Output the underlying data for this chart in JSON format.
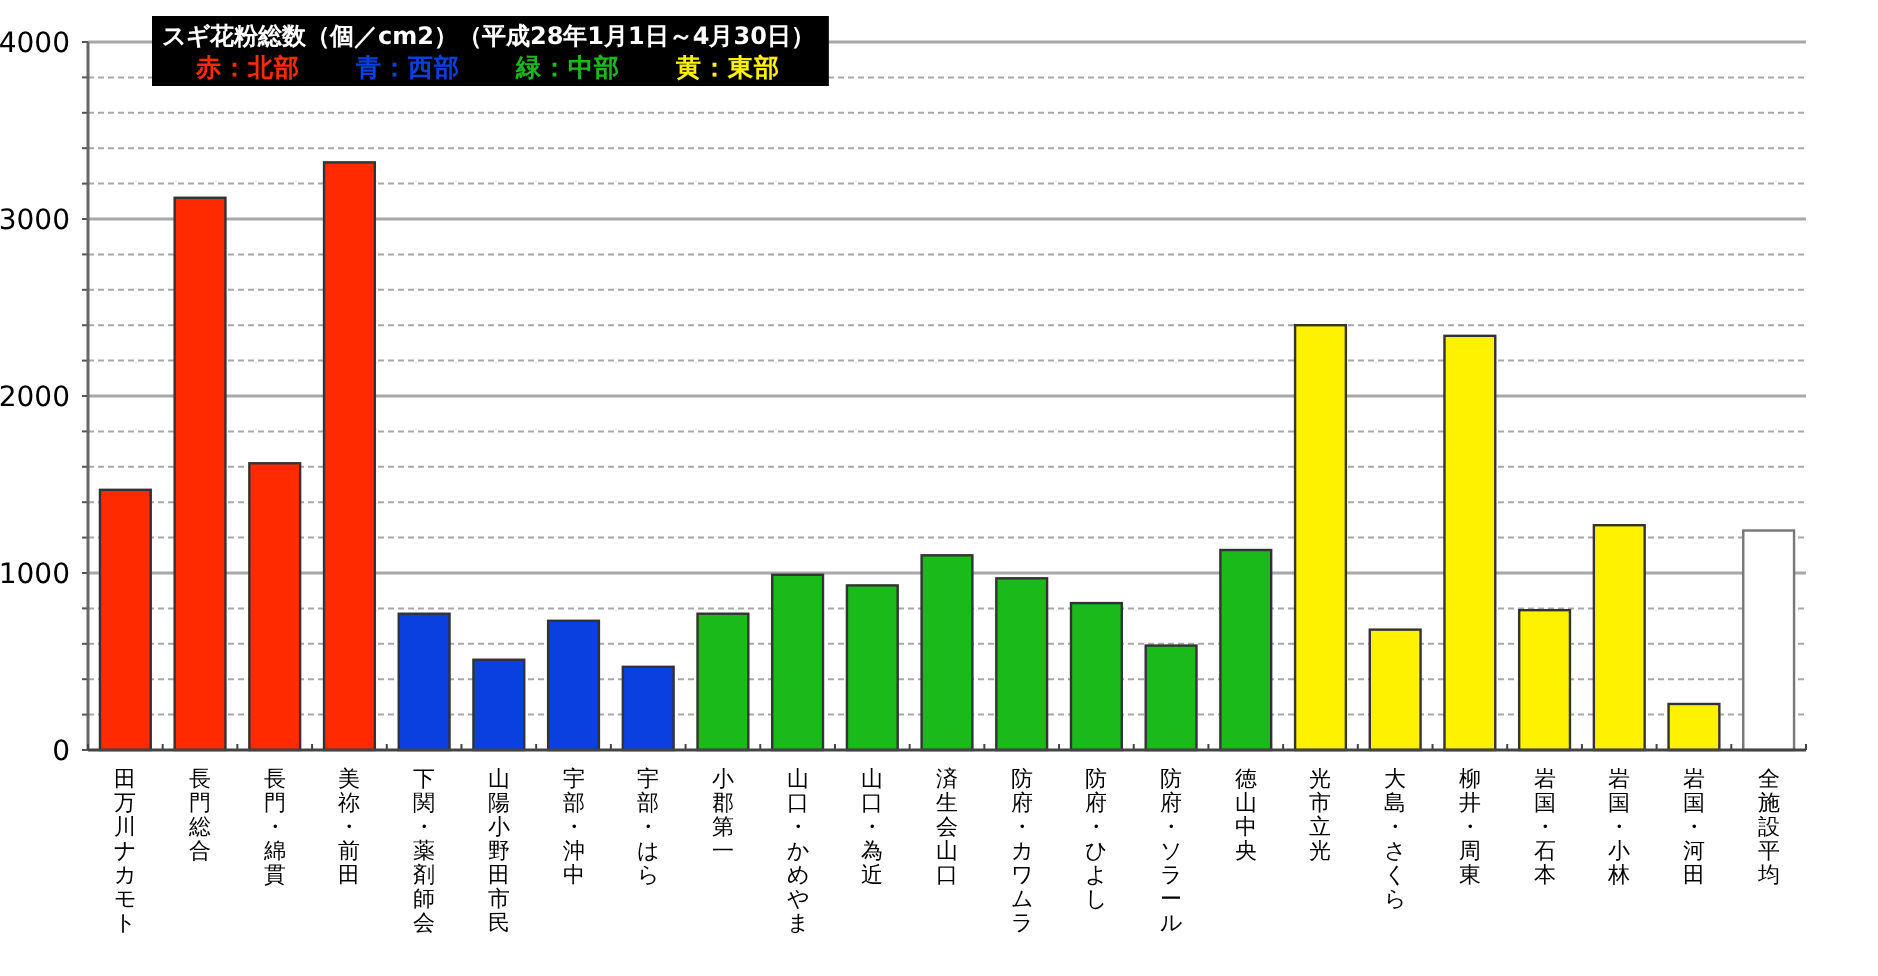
{
  "chart_data": {
    "type": "bar",
    "title": "スギ花粉総数（個／cm2）（平成28年1月1日～4月30日）",
    "categories": [
      "田万川ナカモト",
      "長門総合",
      "長門・綿貫",
      "美祢・前田",
      "下関・薬剤師会",
      "山陽小野田市民",
      "宇部・沖中",
      "宇部・はら",
      "小郡第一",
      "山口・かめやま",
      "山口・為近",
      "済生会山口",
      "防府・カワムラ",
      "防府・ひよし",
      "防府・ソラール",
      "徳山中央",
      "光市立光",
      "大島・さくら",
      "柳井・周東",
      "岩国・石本",
      "岩国・小林",
      "岩国・河田",
      "全施設平均"
    ],
    "series": [
      {
        "name": "赤：北部",
        "color": "#ff2a00",
        "values": [
          1470,
          3120,
          1620,
          3320,
          null,
          null,
          null,
          null,
          null,
          null,
          null,
          null,
          null,
          null,
          null,
          null,
          null,
          null,
          null,
          null,
          null,
          null,
          null
        ]
      },
      {
        "name": "青：西部",
        "color": "#0a3fe0",
        "values": [
          null,
          null,
          null,
          null,
          770,
          510,
          730,
          470,
          null,
          null,
          null,
          null,
          null,
          null,
          null,
          null,
          null,
          null,
          null,
          null,
          null,
          null,
          null
        ]
      },
      {
        "name": "緑：中部",
        "color": "#1aba1a",
        "values": [
          null,
          null,
          null,
          null,
          null,
          null,
          null,
          null,
          770,
          990,
          930,
          1100,
          970,
          830,
          590,
          1130,
          null,
          null,
          null,
          null,
          null,
          null,
          null
        ]
      },
      {
        "name": "黄：東部",
        "color": "#fff200",
        "values": [
          null,
          null,
          null,
          null,
          null,
          null,
          null,
          null,
          null,
          null,
          null,
          null,
          null,
          null,
          null,
          null,
          2400,
          680,
          2340,
          790,
          1270,
          260,
          null
        ]
      },
      {
        "color": "#ffffff",
        "values": [
          null,
          null,
          null,
          null,
          null,
          null,
          null,
          null,
          null,
          null,
          null,
          null,
          null,
          null,
          null,
          null,
          null,
          null,
          null,
          null,
          null,
          null,
          1240
        ]
      }
    ],
    "ylim": [
      0,
      4000
    ],
    "yticks": [
      0,
      {
        "value": 200,
        "label": null
      },
      {
        "value": 400,
        "label": null
      },
      {
        "value": 600,
        "label": null
      },
      {
        "value": 800,
        "label": null
      },
      1000,
      {
        "value": 1200,
        "label": null
      },
      {
        "value": 1400,
        "label": null
      },
      {
        "value": 1600,
        "label": null
      },
      {
        "value": 1800,
        "label": null
      },
      2000,
      {
        "value": 2200,
        "label": null
      },
      {
        "value": 2400,
        "label": null
      },
      {
        "value": 2600,
        "label": null
      },
      {
        "value": 2800,
        "label": null
      },
      3000,
      {
        "value": 3200,
        "label": null
      },
      {
        "value": 3400,
        "label": null
      },
      {
        "value": 3600,
        "label": null
      },
      {
        "value": 3800,
        "label": null
      },
      4000
    ],
    "grid": "y",
    "legend": "top"
  }
}
